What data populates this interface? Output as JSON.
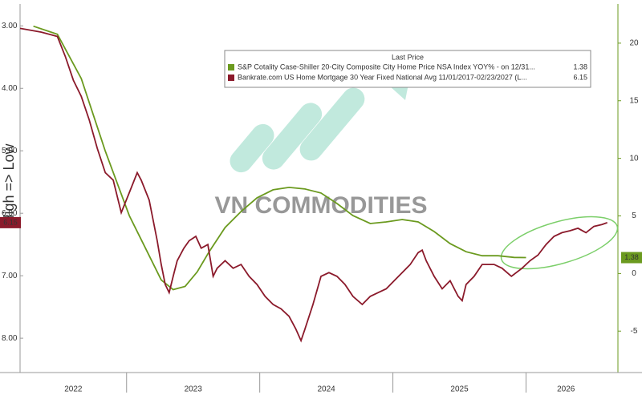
{
  "chart_data": {
    "type": "line",
    "y_label": "High => Low",
    "watermark": "VN COMMODITIES",
    "legend_title": "Last Price",
    "xlim": [
      2022.2,
      2026.69
    ],
    "xticks": [
      2022,
      2023,
      2024,
      2025,
      2026
    ],
    "ylim": [
      2.65,
      8.55
    ],
    "y_inverted": true,
    "yticks": [
      {
        "value": 3,
        "label": "3.00"
      },
      {
        "value": 4,
        "label": "4.00"
      },
      {
        "value": 5,
        "label": "5.00"
      },
      {
        "value": 6,
        "label": "6.00"
      },
      {
        "value": 7,
        "label": "7.00"
      },
      {
        "value": 8,
        "label": "8.00"
      }
    ],
    "y2lim": [
      -8.6,
      23.4
    ],
    "y2ticks": [
      -5,
      0,
      5,
      10,
      15,
      20
    ],
    "series": [
      {
        "name": "S&P Cotality Case-Shiller 20-City Composite City Home Price NSA Index YOY% - on 12/31...",
        "color": "#6b9a1f",
        "axis": "y2",
        "last_value": 1.38,
        "x": [
          2022.3,
          2022.48,
          2022.66,
          2022.84,
          2023.02,
          2023.14,
          2023.26,
          2023.35,
          2023.44,
          2023.53,
          2023.62,
          2023.74,
          2023.86,
          2023.98,
          2024.1,
          2024.22,
          2024.34,
          2024.46,
          2024.58,
          2024.7,
          2024.83,
          2024.95,
          2025.07,
          2025.19,
          2025.31,
          2025.43,
          2025.55,
          2025.67,
          2025.79,
          2025.91,
          2026.0
        ],
        "values": [
          21.47,
          20.77,
          16.92,
          10.63,
          5.03,
          2.24,
          -0.56,
          -1.4,
          -1.12,
          0.14,
          1.89,
          3.99,
          5.38,
          6.57,
          7.27,
          7.48,
          7.34,
          6.99,
          6.08,
          5.03,
          4.34,
          4.48,
          4.69,
          4.48,
          3.64,
          2.59,
          1.89,
          1.54,
          1.54,
          1.4,
          1.38
        ]
      },
      {
        "name": "Bankrate.com US Home Mortgage 30 Year Fixed National Avg 11/01/2017-02/23/2027 (L...",
        "color": "#8b1a2b",
        "axis": "y",
        "last_value": 6.15,
        "x": [
          2022.2,
          2022.36,
          2022.48,
          2022.54,
          2022.6,
          2022.66,
          2022.72,
          2022.78,
          2022.84,
          2022.9,
          2022.96,
          2023.02,
          2023.08,
          2023.11,
          2023.17,
          2023.23,
          2023.26,
          2023.29,
          2023.32,
          2023.35,
          2023.38,
          2023.43,
          2023.47,
          2023.52,
          2023.56,
          2023.61,
          2023.65,
          2023.68,
          2023.74,
          2023.8,
          2023.86,
          2023.92,
          2023.98,
          2024.04,
          2024.1,
          2024.16,
          2024.22,
          2024.27,
          2024.31,
          2024.34,
          2024.4,
          2024.46,
          2024.52,
          2024.58,
          2024.64,
          2024.7,
          2024.77,
          2024.83,
          2024.89,
          2024.95,
          2025.01,
          2025.07,
          2025.13,
          2025.19,
          2025.22,
          2025.25,
          2025.31,
          2025.37,
          2025.43,
          2025.49,
          2025.52,
          2025.55,
          2025.61,
          2025.67,
          2025.76,
          2025.82,
          2025.89,
          2025.97,
          2026.03,
          2026.09,
          2026.15,
          2026.21,
          2026.27,
          2026.33,
          2026.39,
          2026.45,
          2026.51,
          2026.57,
          2026.61
        ],
        "values": [
          3.04,
          3.1,
          3.17,
          3.49,
          3.87,
          4.13,
          4.51,
          4.96,
          5.35,
          5.47,
          5.99,
          5.67,
          5.35,
          5.47,
          5.79,
          6.44,
          6.82,
          7.14,
          7.27,
          7.01,
          6.76,
          6.56,
          6.44,
          6.37,
          6.56,
          6.5,
          7.01,
          6.88,
          6.76,
          6.88,
          6.82,
          7.01,
          7.14,
          7.33,
          7.46,
          7.53,
          7.65,
          7.85,
          8.04,
          7.85,
          7.46,
          7.01,
          6.95,
          7.01,
          7.14,
          7.33,
          7.46,
          7.33,
          7.27,
          7.21,
          7.08,
          6.95,
          6.82,
          6.63,
          6.59,
          6.76,
          7.01,
          7.21,
          7.08,
          7.33,
          7.4,
          7.14,
          7.01,
          6.82,
          6.82,
          6.88,
          7.01,
          6.88,
          6.76,
          6.67,
          6.5,
          6.37,
          6.31,
          6.28,
          6.24,
          6.31,
          6.21,
          6.18,
          6.15
        ]
      }
    ]
  }
}
